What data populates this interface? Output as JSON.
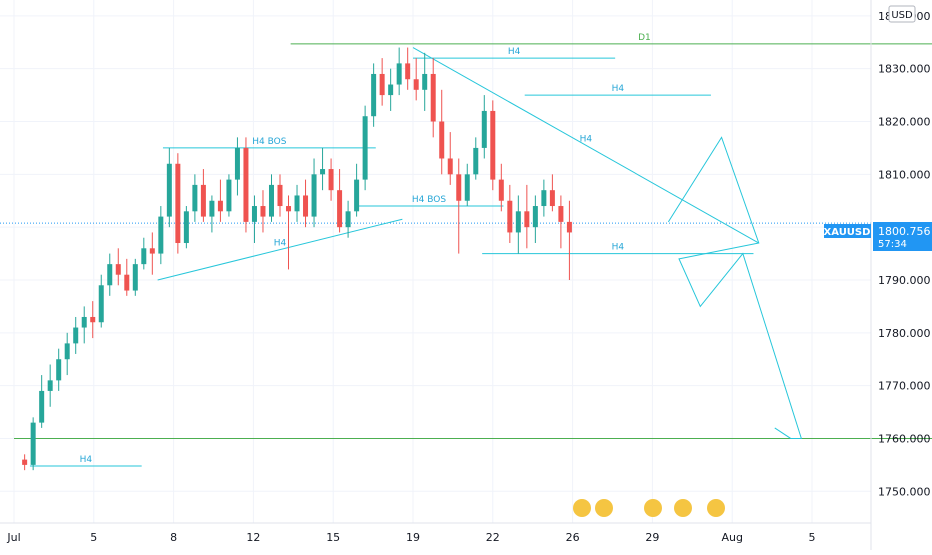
{
  "chart_data": {
    "type": "candlestick",
    "symbol": "XAUUSD",
    "currency": "USD",
    "last_price": "1800.756",
    "countdown": "57:34",
    "ylim": [
      1744,
      1843
    ],
    "y_ticks": [
      "1840.000",
      "1830.000",
      "1820.000",
      "1810.000",
      "1800.000",
      "1790.000",
      "1780.000",
      "1770.000",
      "1760.000",
      "1750.000"
    ],
    "y_tick_values": [
      1840,
      1830,
      1820,
      1810,
      1800,
      1790,
      1780,
      1770,
      1760,
      1750
    ],
    "x_ticks": [
      "Jul",
      "5",
      "8",
      "12",
      "15",
      "19",
      "22",
      "26",
      "29",
      "Aug",
      "5"
    ],
    "x_tick_index": [
      0,
      15,
      30,
      45,
      60,
      75,
      90,
      105,
      120,
      135,
      150
    ],
    "grid": true,
    "up_color": "#26a69a",
    "down_color": "#ef5350",
    "accent_blue": "#2196f3",
    "line_cyan": "#26c6da",
    "line_green": "#4caf50",
    "candles": [
      [
        1756,
        1757,
        1754,
        1755
      ],
      [
        1755,
        1764,
        1754,
        1763
      ],
      [
        1763,
        1772,
        1762,
        1769
      ],
      [
        1769,
        1774,
        1766,
        1771
      ],
      [
        1771,
        1777,
        1769,
        1775
      ],
      [
        1775,
        1780,
        1772,
        1778
      ],
      [
        1778,
        1783,
        1776,
        1781
      ],
      [
        1781,
        1785,
        1778,
        1783
      ],
      [
        1783,
        1786,
        1779,
        1782
      ],
      [
        1782,
        1791,
        1781,
        1789
      ],
      [
        1789,
        1795,
        1787,
        1793
      ],
      [
        1793,
        1796,
        1789,
        1791
      ],
      [
        1791,
        1794,
        1787,
        1788
      ],
      [
        1788,
        1794,
        1787,
        1793
      ],
      [
        1793,
        1798,
        1792,
        1796
      ],
      [
        1796,
        1799,
        1791,
        1795
      ],
      [
        1795,
        1804,
        1793,
        1802
      ],
      [
        1802,
        1815,
        1800,
        1812
      ],
      [
        1812,
        1814,
        1795,
        1797
      ],
      [
        1797,
        1804,
        1796,
        1803
      ],
      [
        1803,
        1810,
        1801,
        1808
      ],
      [
        1808,
        1811,
        1801,
        1802
      ],
      [
        1802,
        1806,
        1799,
        1805
      ],
      [
        1805,
        1809,
        1801,
        1803
      ],
      [
        1803,
        1810,
        1802,
        1809
      ],
      [
        1809,
        1817,
        1806,
        1815
      ],
      [
        1815,
        1817,
        1799,
        1801
      ],
      [
        1801,
        1806,
        1797,
        1804
      ],
      [
        1804,
        1807,
        1799,
        1802
      ],
      [
        1802,
        1810,
        1801,
        1808
      ],
      [
        1808,
        1810,
        1802,
        1804
      ],
      [
        1804,
        1806,
        1792,
        1803
      ],
      [
        1803,
        1808,
        1801,
        1806
      ],
      [
        1806,
        1809,
        1800,
        1802
      ],
      [
        1802,
        1813,
        1800,
        1810
      ],
      [
        1810,
        1815,
        1807,
        1811
      ],
      [
        1811,
        1813,
        1805,
        1807
      ],
      [
        1807,
        1811,
        1799,
        1800
      ],
      [
        1800,
        1805,
        1798,
        1803
      ],
      [
        1803,
        1812,
        1802,
        1809
      ],
      [
        1809,
        1823,
        1807,
        1821
      ],
      [
        1821,
        1831,
        1819,
        1829
      ],
      [
        1829,
        1832,
        1823,
        1825
      ],
      [
        1825,
        1830,
        1822,
        1827
      ],
      [
        1827,
        1834,
        1825,
        1831
      ],
      [
        1831,
        1834,
        1826,
        1828
      ],
      [
        1828,
        1832,
        1824,
        1826
      ],
      [
        1826,
        1833,
        1822,
        1829
      ],
      [
        1829,
        1832,
        1817,
        1820
      ],
      [
        1820,
        1826,
        1810,
        1813
      ],
      [
        1813,
        1818,
        1808,
        1810
      ],
      [
        1810,
        1813,
        1795,
        1805
      ],
      [
        1805,
        1812,
        1804,
        1810
      ],
      [
        1810,
        1817,
        1809,
        1815
      ],
      [
        1815,
        1825,
        1813,
        1822
      ],
      [
        1822,
        1824,
        1807,
        1809
      ],
      [
        1809,
        1812,
        1803,
        1805
      ],
      [
        1805,
        1808,
        1797,
        1799
      ],
      [
        1799,
        1806,
        1795,
        1803
      ],
      [
        1803,
        1808,
        1796,
        1800
      ],
      [
        1800,
        1806,
        1797,
        1804
      ],
      [
        1804,
        1809,
        1802,
        1807
      ],
      [
        1807,
        1810,
        1803,
        1804
      ],
      [
        1804,
        1806,
        1796,
        1801
      ],
      [
        1801,
        1805,
        1790,
        1799
      ]
    ],
    "candle_start_index": 2,
    "candle_spacing_index": 1.6,
    "annotations": [
      {
        "label": "H4",
        "type": "hline",
        "x1": 3,
        "x2": 24,
        "y": 1754.8
      },
      {
        "label": "H4",
        "type": "line",
        "x1": 27,
        "y1": 1790,
        "x2": 73,
        "y2": 1801.5
      },
      {
        "label": "H4 BOS",
        "type": "hline",
        "x1": 28,
        "x2": 68,
        "y": 1815
      },
      {
        "label": "H4 BOS",
        "type": "hline",
        "x1": 64,
        "x2": 92,
        "y": 1804
      },
      {
        "label": "H4",
        "type": "hline",
        "x1": 75,
        "x2": 113,
        "y": 1832
      },
      {
        "label": "H4",
        "type": "hline",
        "x1": 96,
        "x2": 131,
        "y": 1825
      },
      {
        "label": "H4",
        "type": "line",
        "x1": 75,
        "y1": 1834,
        "x2": 140,
        "y2": 1797
      },
      {
        "label": "H4",
        "type": "hline",
        "x1": 88,
        "x2": 139,
        "y": 1795
      },
      {
        "label": "D1",
        "type": "hline_green",
        "x1": 52,
        "x2": 185,
        "y": 1834.7
      },
      {
        "label": "",
        "type": "hline_green",
        "x1": 0,
        "x2": 185,
        "y": 1760
      }
    ],
    "projection_path": [
      [
        123,
        1801
      ],
      [
        133,
        1817
      ],
      [
        140,
        1797
      ],
      [
        125,
        1794
      ],
      [
        129,
        1785
      ],
      [
        137,
        1795
      ],
      [
        148,
        1760
      ],
      [
        146,
        1760
      ],
      [
        143,
        1762
      ]
    ]
  }
}
